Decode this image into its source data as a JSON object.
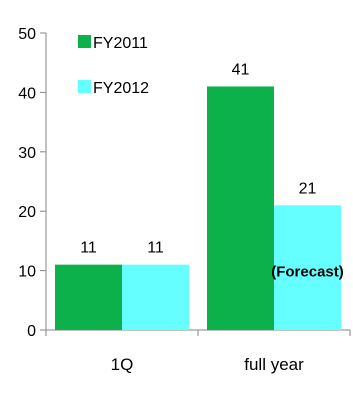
{
  "chart_data": {
    "type": "bar",
    "categories": [
      "1Q",
      "full year"
    ],
    "series": [
      {
        "name": "FY2011",
        "values": [
          11,
          41
        ],
        "color": "#0db14b"
      },
      {
        "name": "FY2012",
        "values": [
          11,
          21
        ],
        "color": "#66ffff"
      }
    ],
    "ylim": [
      0,
      50
    ],
    "yticks": [
      0,
      10,
      20,
      30,
      40,
      50
    ],
    "grid": false,
    "legend_position": "top-left",
    "annotations": [
      {
        "text": "(Forecast)",
        "series": 1,
        "category": 1
      }
    ]
  }
}
